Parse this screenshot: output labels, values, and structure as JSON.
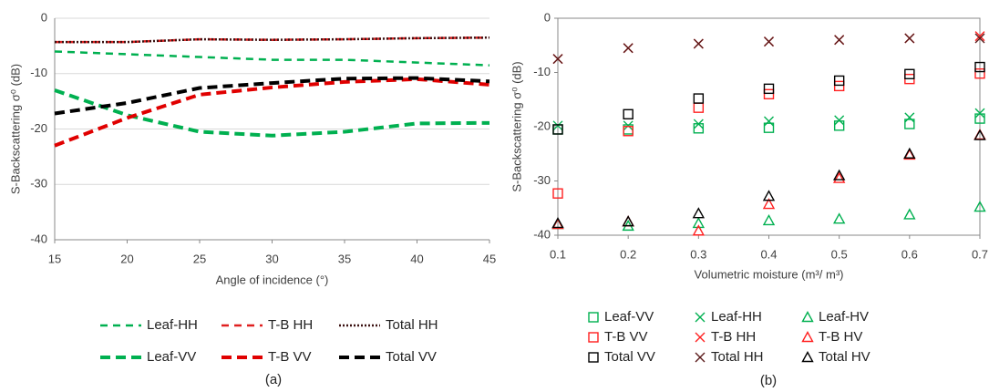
{
  "chart_data": [
    {
      "type": "line",
      "caption": "(a)",
      "xlabel": "Angle of incidence (°)",
      "ylabel": "S-Backscattering σ⁰ (dB)",
      "x": [
        15,
        20,
        25,
        30,
        35,
        40,
        45
      ],
      "xlim": [
        15,
        45
      ],
      "xticks": [
        15,
        20,
        25,
        30,
        35,
        40,
        45
      ],
      "ylim": [
        -40,
        0
      ],
      "yticks": [
        -40,
        -30,
        -20,
        -10,
        0
      ],
      "grid": true,
      "series": [
        {
          "name": "Leaf-HH",
          "color": "#00b050",
          "line_style": "dashed",
          "line_weight": "thin",
          "values": [
            -6,
            -6.5,
            -7,
            -7.5,
            -7.5,
            -8,
            -8.5
          ]
        },
        {
          "name": "T-B HH",
          "color": "#e02020",
          "line_style": "dashed",
          "line_weight": "thin",
          "values": [
            -4.3,
            -4.3,
            -3.8,
            -3.9,
            -3.8,
            -3.6,
            -3.5
          ]
        },
        {
          "name": "Total HH",
          "color": "#3a1010",
          "line_style": "dotted",
          "line_weight": "thin",
          "values": [
            -4.3,
            -4.3,
            -3.8,
            -3.9,
            -3.8,
            -3.6,
            -3.5
          ]
        },
        {
          "name": "Leaf-VV",
          "color": "#00b050",
          "line_style": "dashed",
          "line_weight": "thick",
          "values": [
            -13,
            -17.5,
            -20.5,
            -21.2,
            -20.5,
            -19,
            -18.9
          ]
        },
        {
          "name": "T-B VV",
          "color": "#e00000",
          "line_style": "dashed",
          "line_weight": "thick",
          "values": [
            -23,
            -18,
            -13.8,
            -12.5,
            -11.5,
            -11,
            -12
          ]
        },
        {
          "name": "Total VV",
          "color": "#000000",
          "line_style": "dashed",
          "line_weight": "thick",
          "values": [
            -17.2,
            -15.3,
            -12.6,
            -11.7,
            -10.9,
            -10.8,
            -11.4
          ]
        }
      ]
    },
    {
      "type": "scatter",
      "caption": "(b)",
      "xlabel": "Volumetric moisture (m³/ m³)",
      "ylabel": "S-Backscattering σ⁰ (dB)",
      "x": [
        0.1,
        0.2,
        0.3,
        0.4,
        0.5,
        0.6,
        0.7
      ],
      "xlim": [
        0.1,
        0.7
      ],
      "xticks": [
        0.1,
        0.2,
        0.3,
        0.4,
        0.5,
        0.6,
        0.7
      ],
      "ylim": [
        -40,
        0
      ],
      "yticks": [
        -40,
        -30,
        -20,
        -10,
        0
      ],
      "grid": false,
      "series": [
        {
          "name": "Leaf-VV",
          "color": "#00b050",
          "marker": "square",
          "values": [
            -20.5,
            -20.5,
            -20.3,
            -20.2,
            -19.8,
            -19.5,
            -18.5
          ]
        },
        {
          "name": "Leaf-HH",
          "color": "#00b050",
          "marker": "x",
          "values": [
            -19.8,
            -19.8,
            -19.5,
            -19,
            -18.8,
            -18.3,
            -17.5
          ]
        },
        {
          "name": "Leaf-HV",
          "color": "#00b050",
          "marker": "triangle",
          "values": [
            -38,
            -38.3,
            -37.8,
            -37.3,
            -37,
            -36.2,
            -34.8
          ]
        },
        {
          "name": "T-B VV",
          "color": "#ff2020",
          "marker": "square",
          "values": [
            -32.3,
            -20.8,
            -16.5,
            -14,
            -12.5,
            -11.2,
            -10.2
          ]
        },
        {
          "name": "T-B HH",
          "color": "#ff2020",
          "marker": "x",
          "values": [
            -7.5,
            -5.5,
            -4.7,
            -4.3,
            -4,
            -3.7,
            -3.3
          ]
        },
        {
          "name": "T-B HV",
          "color": "#ff2020",
          "marker": "triangle",
          "values": [
            -38,
            -37.5,
            -39.2,
            -34.3,
            -29.5,
            -25.2,
            -21.5
          ]
        },
        {
          "name": "Total VV",
          "color": "#000000",
          "marker": "square",
          "values": [
            -20.5,
            -17.7,
            -14.8,
            -13,
            -11.5,
            -10.3,
            -9
          ]
        },
        {
          "name": "Total HH",
          "color": "#5a1a1a",
          "marker": "x",
          "values": [
            -7.5,
            -5.5,
            -4.7,
            -4.3,
            -4,
            -3.7,
            -3.7
          ]
        },
        {
          "name": "Total HV",
          "color": "#000000",
          "marker": "triangle",
          "values": [
            -37.8,
            -37.5,
            -36,
            -32.8,
            -29,
            -25,
            -21.6
          ]
        }
      ]
    }
  ]
}
